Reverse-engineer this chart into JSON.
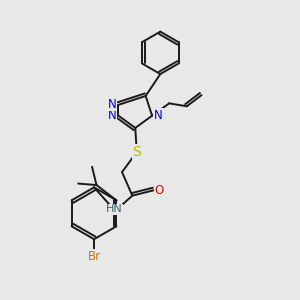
{
  "bg_color": "#e8e8e8",
  "bond_color": "#1a1a1a",
  "atom_colors": {
    "N": "#0000ee",
    "S": "#bbbb00",
    "O": "#ee0000",
    "Br": "#cc7700",
    "HN": "#336666",
    "C": "#1a1a1a"
  },
  "lw": 1.4,
  "fs": 8.5
}
